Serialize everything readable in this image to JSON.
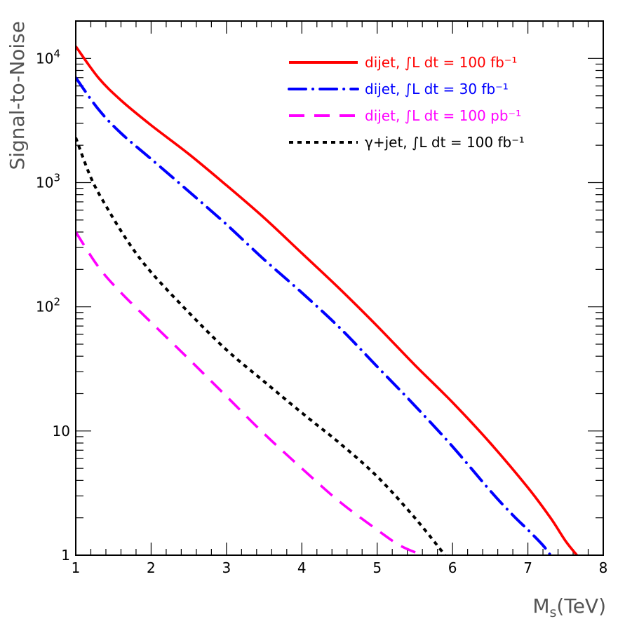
{
  "chart_data": {
    "type": "line",
    "title": "",
    "xlabel": "M_s(TeV)",
    "xlabel_main": "M",
    "xlabel_sub": "s",
    "xlabel_rest": "(TeV)",
    "ylabel": "Signal-to-Noise",
    "xlim": [
      1,
      8
    ],
    "ylim": [
      1,
      20000
    ],
    "yscale": "log",
    "x_ticks": [
      1,
      2,
      3,
      4,
      5,
      6,
      7,
      8
    ],
    "x_tick_labels": [
      "1",
      "2",
      "3",
      "4",
      "5",
      "6",
      "7",
      "8"
    ],
    "y_ticks": [
      {
        "value": 1,
        "base": "1",
        "exp": ""
      },
      {
        "value": 10,
        "base": "10",
        "exp": ""
      },
      {
        "value": 100,
        "base": "10",
        "exp": "2"
      },
      {
        "value": 1000,
        "base": "10",
        "exp": "3"
      },
      {
        "value": 10000,
        "base": "10",
        "exp": "4"
      }
    ],
    "legend_position": "top-right",
    "series": [
      {
        "name": "dijet, ∫L dt = 100 fb⁻¹",
        "color": "#ff0000",
        "style": "solid",
        "x": [
          1.0,
          1.3,
          1.6,
          2.0,
          2.5,
          3.0,
          3.5,
          4.0,
          4.5,
          5.0,
          5.5,
          6.0,
          6.5,
          7.0,
          7.3,
          7.5,
          7.65
        ],
        "y": [
          12500,
          7000,
          4600,
          2900,
          1700,
          950,
          520,
          270,
          140,
          70,
          34,
          17,
          8,
          3.5,
          2.0,
          1.3,
          1.0
        ]
      },
      {
        "name": "dijet,  ∫L dt = 30 fb⁻¹",
        "color": "#0000ff",
        "style": "dashdot",
        "x": [
          1.0,
          1.3,
          1.6,
          2.0,
          2.5,
          3.0,
          3.5,
          4.0,
          4.5,
          5.0,
          5.5,
          6.0,
          6.5,
          6.8,
          7.0,
          7.2,
          7.3
        ],
        "y": [
          7000,
          3900,
          2500,
          1550,
          850,
          460,
          240,
          130,
          68,
          33,
          16,
          7.5,
          3.3,
          2.1,
          1.6,
          1.2,
          1.0
        ]
      },
      {
        "name": "dijet, ∫L dt = 100 pb⁻¹",
        "color": "#ff00ff",
        "style": "dashed",
        "x": [
          1.0,
          1.3,
          1.6,
          2.0,
          2.5,
          3.0,
          3.5,
          4.0,
          4.5,
          5.0,
          5.3,
          5.6
        ],
        "y": [
          400,
          210,
          130,
          75,
          38,
          19,
          9.5,
          5.0,
          2.7,
          1.6,
          1.2,
          1.0
        ]
      },
      {
        "name": "γ+jet, ∫L dt = 100 fb⁻¹",
        "color": "#000000",
        "style": "dotted",
        "x": [
          1.0,
          1.2,
          1.4,
          1.7,
          2.0,
          2.5,
          3.0,
          3.5,
          4.0,
          4.5,
          5.0,
          5.5,
          5.9
        ],
        "y": [
          2300,
          1100,
          650,
          330,
          190,
          90,
          45,
          25,
          14,
          8.0,
          4.3,
          2.0,
          1.0
        ]
      }
    ]
  }
}
